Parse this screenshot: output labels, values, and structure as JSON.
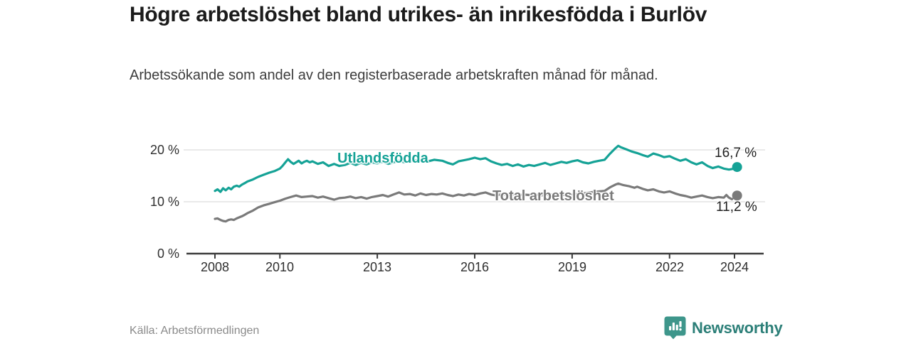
{
  "header": {
    "title": "Högre arbetslöshet bland utrikes- än inrikesfödda i Burlöv",
    "subtitle": "Arbetssökande som andel av den registerbaserade arbetskraften månad för månad."
  },
  "footer": {
    "source": "Källa: Arbetsförmedlingen",
    "brand": "Newsworthy",
    "brand_icon": "bar-chart-speech-bubble"
  },
  "colors": {
    "series_teal": "#15a296",
    "series_gray": "#7a7a7a",
    "grid": "#dcdcdc",
    "axis": "#3c3c3c",
    "logo_teal": "#3e968b",
    "logo_text": "#2c7f78"
  },
  "chart_data": {
    "type": "line",
    "title": "Högre arbetslöshet bland utrikes- än inrikesfödda i Burlöv",
    "subtitle": "Arbetssökande som andel av den registerbaserade arbetskraften månad för månad.",
    "source": "Källa: Arbetsförmedlingen",
    "grid": "horizontal-only",
    "legend_position": "inline-on-line",
    "xlim": [
      2007.6,
      2024.9
    ],
    "ylim": [
      0,
      22
    ],
    "yticks": [
      {
        "value": 0,
        "label": "0 %"
      },
      {
        "value": 10,
        "label": "10 %"
      },
      {
        "value": 20,
        "label": "20 %"
      }
    ],
    "xticks": [
      {
        "year": 2008,
        "label": "2008"
      },
      {
        "year": 2010,
        "label": "2010"
      },
      {
        "year": 2013,
        "label": "2013"
      },
      {
        "year": 2016,
        "label": "2016"
      },
      {
        "year": 2019,
        "label": "2019"
      },
      {
        "year": 2022,
        "label": "2022"
      },
      {
        "year": 2024,
        "label": "2024"
      }
    ],
    "series": [
      {
        "name": "Utlandsfödda",
        "color": "#15a296",
        "end_value": 16.7,
        "end_label": "16,7 %",
        "points": [
          [
            2008.0,
            12.1
          ],
          [
            2008.08,
            12.4
          ],
          [
            2008.17,
            11.9
          ],
          [
            2008.25,
            12.6
          ],
          [
            2008.33,
            12.2
          ],
          [
            2008.42,
            12.7
          ],
          [
            2008.5,
            12.4
          ],
          [
            2008.58,
            12.9
          ],
          [
            2008.67,
            13.1
          ],
          [
            2008.75,
            12.9
          ],
          [
            2008.83,
            13.3
          ],
          [
            2008.92,
            13.6
          ],
          [
            2009.0,
            13.9
          ],
          [
            2009.17,
            14.3
          ],
          [
            2009.33,
            14.8
          ],
          [
            2009.5,
            15.2
          ],
          [
            2009.67,
            15.6
          ],
          [
            2009.83,
            15.9
          ],
          [
            2010.0,
            16.4
          ],
          [
            2010.08,
            16.9
          ],
          [
            2010.17,
            17.6
          ],
          [
            2010.25,
            18.2
          ],
          [
            2010.33,
            17.7
          ],
          [
            2010.42,
            17.3
          ],
          [
            2010.5,
            17.6
          ],
          [
            2010.58,
            17.9
          ],
          [
            2010.67,
            17.4
          ],
          [
            2010.75,
            17.7
          ],
          [
            2010.83,
            17.9
          ],
          [
            2010.92,
            17.6
          ],
          [
            2011.0,
            17.8
          ],
          [
            2011.17,
            17.3
          ],
          [
            2011.33,
            17.6
          ],
          [
            2011.5,
            16.9
          ],
          [
            2011.67,
            17.3
          ],
          [
            2011.83,
            16.9
          ],
          [
            2012.0,
            17.1
          ],
          [
            2012.17,
            17.5
          ],
          [
            2012.33,
            17.1
          ],
          [
            2012.5,
            17.5
          ],
          [
            2012.67,
            17.2
          ],
          [
            2012.83,
            17.6
          ],
          [
            2013.0,
            17.4
          ],
          [
            2013.17,
            17.7
          ],
          [
            2013.33,
            17.3
          ],
          [
            2013.5,
            17.6
          ],
          [
            2013.67,
            17.9
          ],
          [
            2013.83,
            17.6
          ],
          [
            2014.0,
            17.8
          ],
          [
            2014.25,
            18.0
          ],
          [
            2014.5,
            17.7
          ],
          [
            2014.75,
            18.1
          ],
          [
            2015.0,
            17.9
          ],
          [
            2015.17,
            17.5
          ],
          [
            2015.33,
            17.2
          ],
          [
            2015.5,
            17.8
          ],
          [
            2015.67,
            18.0
          ],
          [
            2015.83,
            18.2
          ],
          [
            2016.0,
            18.5
          ],
          [
            2016.17,
            18.2
          ],
          [
            2016.33,
            18.4
          ],
          [
            2016.5,
            17.8
          ],
          [
            2016.67,
            17.4
          ],
          [
            2016.83,
            17.1
          ],
          [
            2017.0,
            17.3
          ],
          [
            2017.17,
            16.9
          ],
          [
            2017.33,
            17.2
          ],
          [
            2017.5,
            16.8
          ],
          [
            2017.67,
            17.1
          ],
          [
            2017.83,
            16.9
          ],
          [
            2018.0,
            17.2
          ],
          [
            2018.17,
            17.5
          ],
          [
            2018.33,
            17.1
          ],
          [
            2018.5,
            17.4
          ],
          [
            2018.67,
            17.7
          ],
          [
            2018.83,
            17.5
          ],
          [
            2019.0,
            17.8
          ],
          [
            2019.17,
            18.0
          ],
          [
            2019.33,
            17.6
          ],
          [
            2019.5,
            17.4
          ],
          [
            2019.67,
            17.7
          ],
          [
            2019.83,
            17.9
          ],
          [
            2020.0,
            18.1
          ],
          [
            2020.17,
            19.3
          ],
          [
            2020.33,
            20.3
          ],
          [
            2020.42,
            20.8
          ],
          [
            2020.5,
            20.5
          ],
          [
            2020.67,
            20.1
          ],
          [
            2020.83,
            19.7
          ],
          [
            2021.0,
            19.4
          ],
          [
            2021.17,
            19.0
          ],
          [
            2021.33,
            18.7
          ],
          [
            2021.5,
            19.3
          ],
          [
            2021.67,
            19.0
          ],
          [
            2021.83,
            18.6
          ],
          [
            2022.0,
            18.8
          ],
          [
            2022.17,
            18.3
          ],
          [
            2022.33,
            17.9
          ],
          [
            2022.5,
            18.2
          ],
          [
            2022.67,
            17.6
          ],
          [
            2022.83,
            17.2
          ],
          [
            2023.0,
            17.6
          ],
          [
            2023.17,
            16.9
          ],
          [
            2023.33,
            16.5
          ],
          [
            2023.5,
            16.8
          ],
          [
            2023.67,
            16.4
          ],
          [
            2023.83,
            16.2
          ],
          [
            2024.0,
            16.4
          ],
          [
            2024.08,
            16.7
          ]
        ]
      },
      {
        "name": "Total arbetslöshet",
        "color": "#7a7a7a",
        "end_value": 11.2,
        "end_label": "11,2 %",
        "points": [
          [
            2008.0,
            6.7
          ],
          [
            2008.08,
            6.8
          ],
          [
            2008.17,
            6.5
          ],
          [
            2008.25,
            6.3
          ],
          [
            2008.33,
            6.2
          ],
          [
            2008.42,
            6.5
          ],
          [
            2008.5,
            6.6
          ],
          [
            2008.58,
            6.5
          ],
          [
            2008.67,
            6.8
          ],
          [
            2008.75,
            7.0
          ],
          [
            2008.83,
            7.2
          ],
          [
            2008.92,
            7.5
          ],
          [
            2009.0,
            7.8
          ],
          [
            2009.17,
            8.3
          ],
          [
            2009.33,
            8.9
          ],
          [
            2009.5,
            9.3
          ],
          [
            2009.67,
            9.6
          ],
          [
            2009.83,
            9.9
          ],
          [
            2010.0,
            10.2
          ],
          [
            2010.17,
            10.6
          ],
          [
            2010.33,
            10.9
          ],
          [
            2010.5,
            11.2
          ],
          [
            2010.67,
            10.9
          ],
          [
            2010.83,
            11.0
          ],
          [
            2011.0,
            11.1
          ],
          [
            2011.17,
            10.8
          ],
          [
            2011.33,
            11.0
          ],
          [
            2011.5,
            10.7
          ],
          [
            2011.67,
            10.4
          ],
          [
            2011.83,
            10.7
          ],
          [
            2012.0,
            10.8
          ],
          [
            2012.17,
            11.0
          ],
          [
            2012.33,
            10.7
          ],
          [
            2012.5,
            10.9
          ],
          [
            2012.67,
            10.6
          ],
          [
            2012.83,
            10.9
          ],
          [
            2013.0,
            11.1
          ],
          [
            2013.17,
            11.3
          ],
          [
            2013.33,
            11.0
          ],
          [
            2013.5,
            11.4
          ],
          [
            2013.67,
            11.8
          ],
          [
            2013.83,
            11.4
          ],
          [
            2014.0,
            11.5
          ],
          [
            2014.17,
            11.2
          ],
          [
            2014.33,
            11.6
          ],
          [
            2014.5,
            11.3
          ],
          [
            2014.67,
            11.5
          ],
          [
            2014.83,
            11.4
          ],
          [
            2015.0,
            11.6
          ],
          [
            2015.17,
            11.3
          ],
          [
            2015.33,
            11.1
          ],
          [
            2015.5,
            11.4
          ],
          [
            2015.67,
            11.2
          ],
          [
            2015.83,
            11.5
          ],
          [
            2016.0,
            11.3
          ],
          [
            2016.17,
            11.6
          ],
          [
            2016.33,
            11.8
          ],
          [
            2016.5,
            11.4
          ],
          [
            2016.67,
            11.2
          ],
          [
            2016.83,
            11.5
          ],
          [
            2017.0,
            11.3
          ],
          [
            2017.17,
            11.5
          ],
          [
            2017.33,
            11.2
          ],
          [
            2017.5,
            11.4
          ],
          [
            2017.67,
            11.3
          ],
          [
            2017.83,
            11.5
          ],
          [
            2018.0,
            11.2
          ],
          [
            2018.33,
            11.4
          ],
          [
            2018.67,
            11.3
          ],
          [
            2019.0,
            11.4
          ],
          [
            2019.33,
            11.6
          ],
          [
            2019.67,
            11.9
          ],
          [
            2020.0,
            12.1
          ],
          [
            2020.17,
            12.8
          ],
          [
            2020.33,
            13.3
          ],
          [
            2020.42,
            13.5
          ],
          [
            2020.58,
            13.2
          ],
          [
            2020.75,
            13.0
          ],
          [
            2020.92,
            12.7
          ],
          [
            2021.0,
            12.9
          ],
          [
            2021.17,
            12.5
          ],
          [
            2021.33,
            12.2
          ],
          [
            2021.5,
            12.4
          ],
          [
            2021.67,
            12.0
          ],
          [
            2021.83,
            11.8
          ],
          [
            2022.0,
            12.0
          ],
          [
            2022.17,
            11.6
          ],
          [
            2022.33,
            11.3
          ],
          [
            2022.5,
            11.1
          ],
          [
            2022.67,
            10.8
          ],
          [
            2022.83,
            11.0
          ],
          [
            2023.0,
            11.2
          ],
          [
            2023.17,
            10.9
          ],
          [
            2023.33,
            10.7
          ],
          [
            2023.5,
            10.9
          ],
          [
            2023.67,
            10.8
          ],
          [
            2023.75,
            11.3
          ],
          [
            2023.83,
            10.8
          ],
          [
            2023.92,
            10.5
          ]
        ],
        "dashed_tail": [
          [
            2023.92,
            10.5
          ],
          [
            2024.08,
            11.2
          ]
        ]
      }
    ]
  }
}
